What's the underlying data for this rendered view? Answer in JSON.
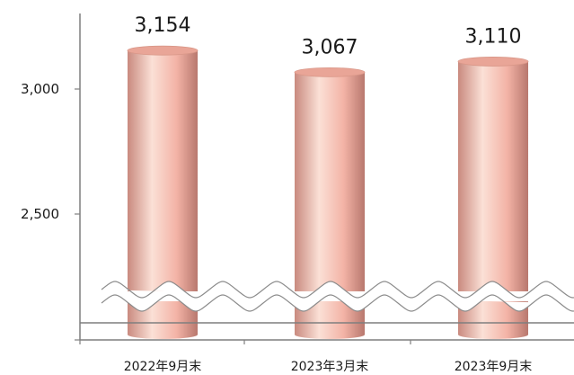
{
  "chart_data": {
    "type": "bar",
    "style": "3d-cylinder",
    "axis_break": true,
    "categories": [
      "2022年9月末",
      "2023年3月末",
      "2023年9月末"
    ],
    "values": [
      3154,
      3067,
      3110
    ],
    "data_labels": [
      "3,154",
      "3,067",
      "3,110"
    ],
    "yticks": [
      {
        "value": 2500,
        "label": "2,500"
      },
      {
        "value": 3000,
        "label": "3,000"
      }
    ],
    "ylim": [
      2000,
      3300
    ],
    "grid": false,
    "legend": "none",
    "colors": {
      "bar_light": "#fbe0d6",
      "bar_mid": "#f3b3a6",
      "bar_dark": "#c98a7f",
      "bar_top": "#e9a597",
      "axis": "#7f7f7f",
      "break_line": "#8c8c8c"
    }
  }
}
